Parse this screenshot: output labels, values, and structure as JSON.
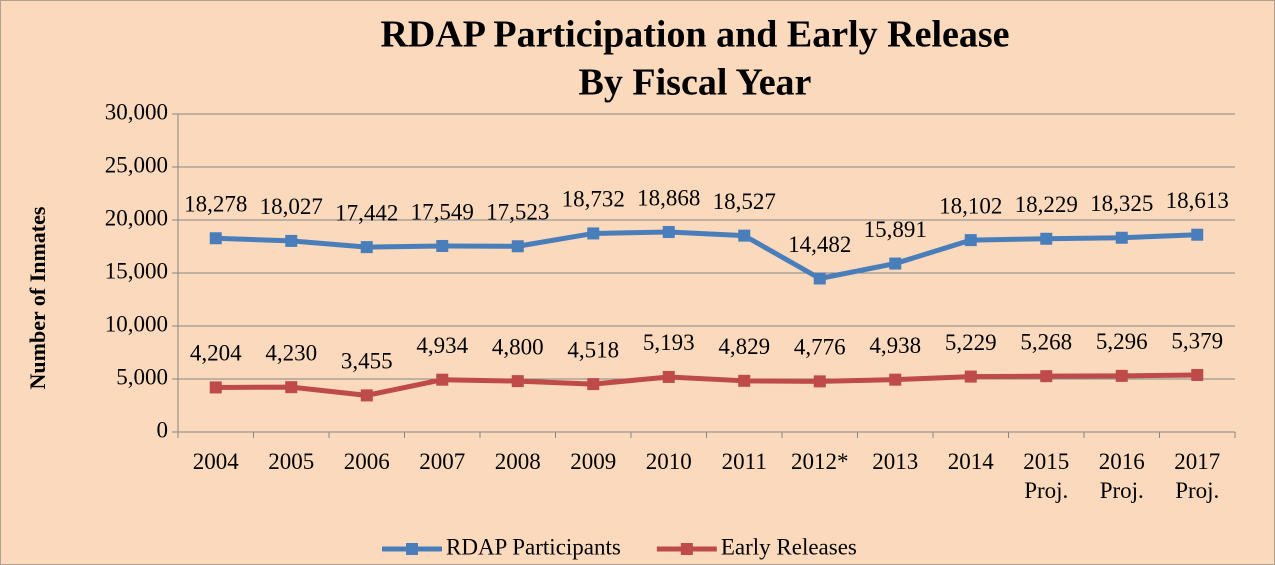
{
  "chart_data": {
    "type": "line",
    "title": "RDAP Participation and Early Release",
    "subtitle": "By Fiscal Year",
    "y_label": "Number of Inmates",
    "categories": [
      "2004",
      "2005",
      "2006",
      "2007",
      "2008",
      "2009",
      "2010",
      "2011",
      "2012*",
      "2013",
      "2014",
      "2015\nProj.",
      "2016\nProj.",
      "2017\nProj."
    ],
    "series": [
      {
        "name": "RDAP Participants",
        "color": "#4a7ebb",
        "values": [
          18278,
          18027,
          17442,
          17549,
          17523,
          18732,
          18868,
          18527,
          14482,
          15891,
          18102,
          18229,
          18325,
          18613
        ],
        "value_labels": [
          "18,278",
          "18,027",
          "17,442",
          "17,549",
          "17,523",
          "18,732",
          "18,868",
          "18,527",
          "14,482",
          "15,891",
          "18,102",
          "18,229",
          "18,325",
          "18,613"
        ]
      },
      {
        "name": "Early Releases",
        "color": "#be4b48",
        "values": [
          4204,
          4230,
          3455,
          4934,
          4800,
          4518,
          5193,
          4829,
          4776,
          4938,
          5229,
          5268,
          5296,
          5379
        ],
        "value_labels": [
          "4,204",
          "4,230",
          "3,455",
          "4,934",
          "4,800",
          "4,518",
          "5,193",
          "4,829",
          "4,776",
          "4,938",
          "5,229",
          "5,268",
          "5,296",
          "5,379"
        ]
      }
    ],
    "ylim": [
      0,
      30000
    ],
    "yticks": [
      0,
      {
        "value": 5000,
        "label": "5,000"
      },
      {
        "value": 10000,
        "label": "10,000"
      },
      {
        "value": 15000,
        "label": "15,000"
      },
      {
        "value": 20000,
        "label": "20,000"
      },
      {
        "value": 25000,
        "label": "25,000"
      },
      {
        "value": 30000,
        "label": "30,000"
      }
    ],
    "grid": true,
    "legend": "bottom"
  }
}
